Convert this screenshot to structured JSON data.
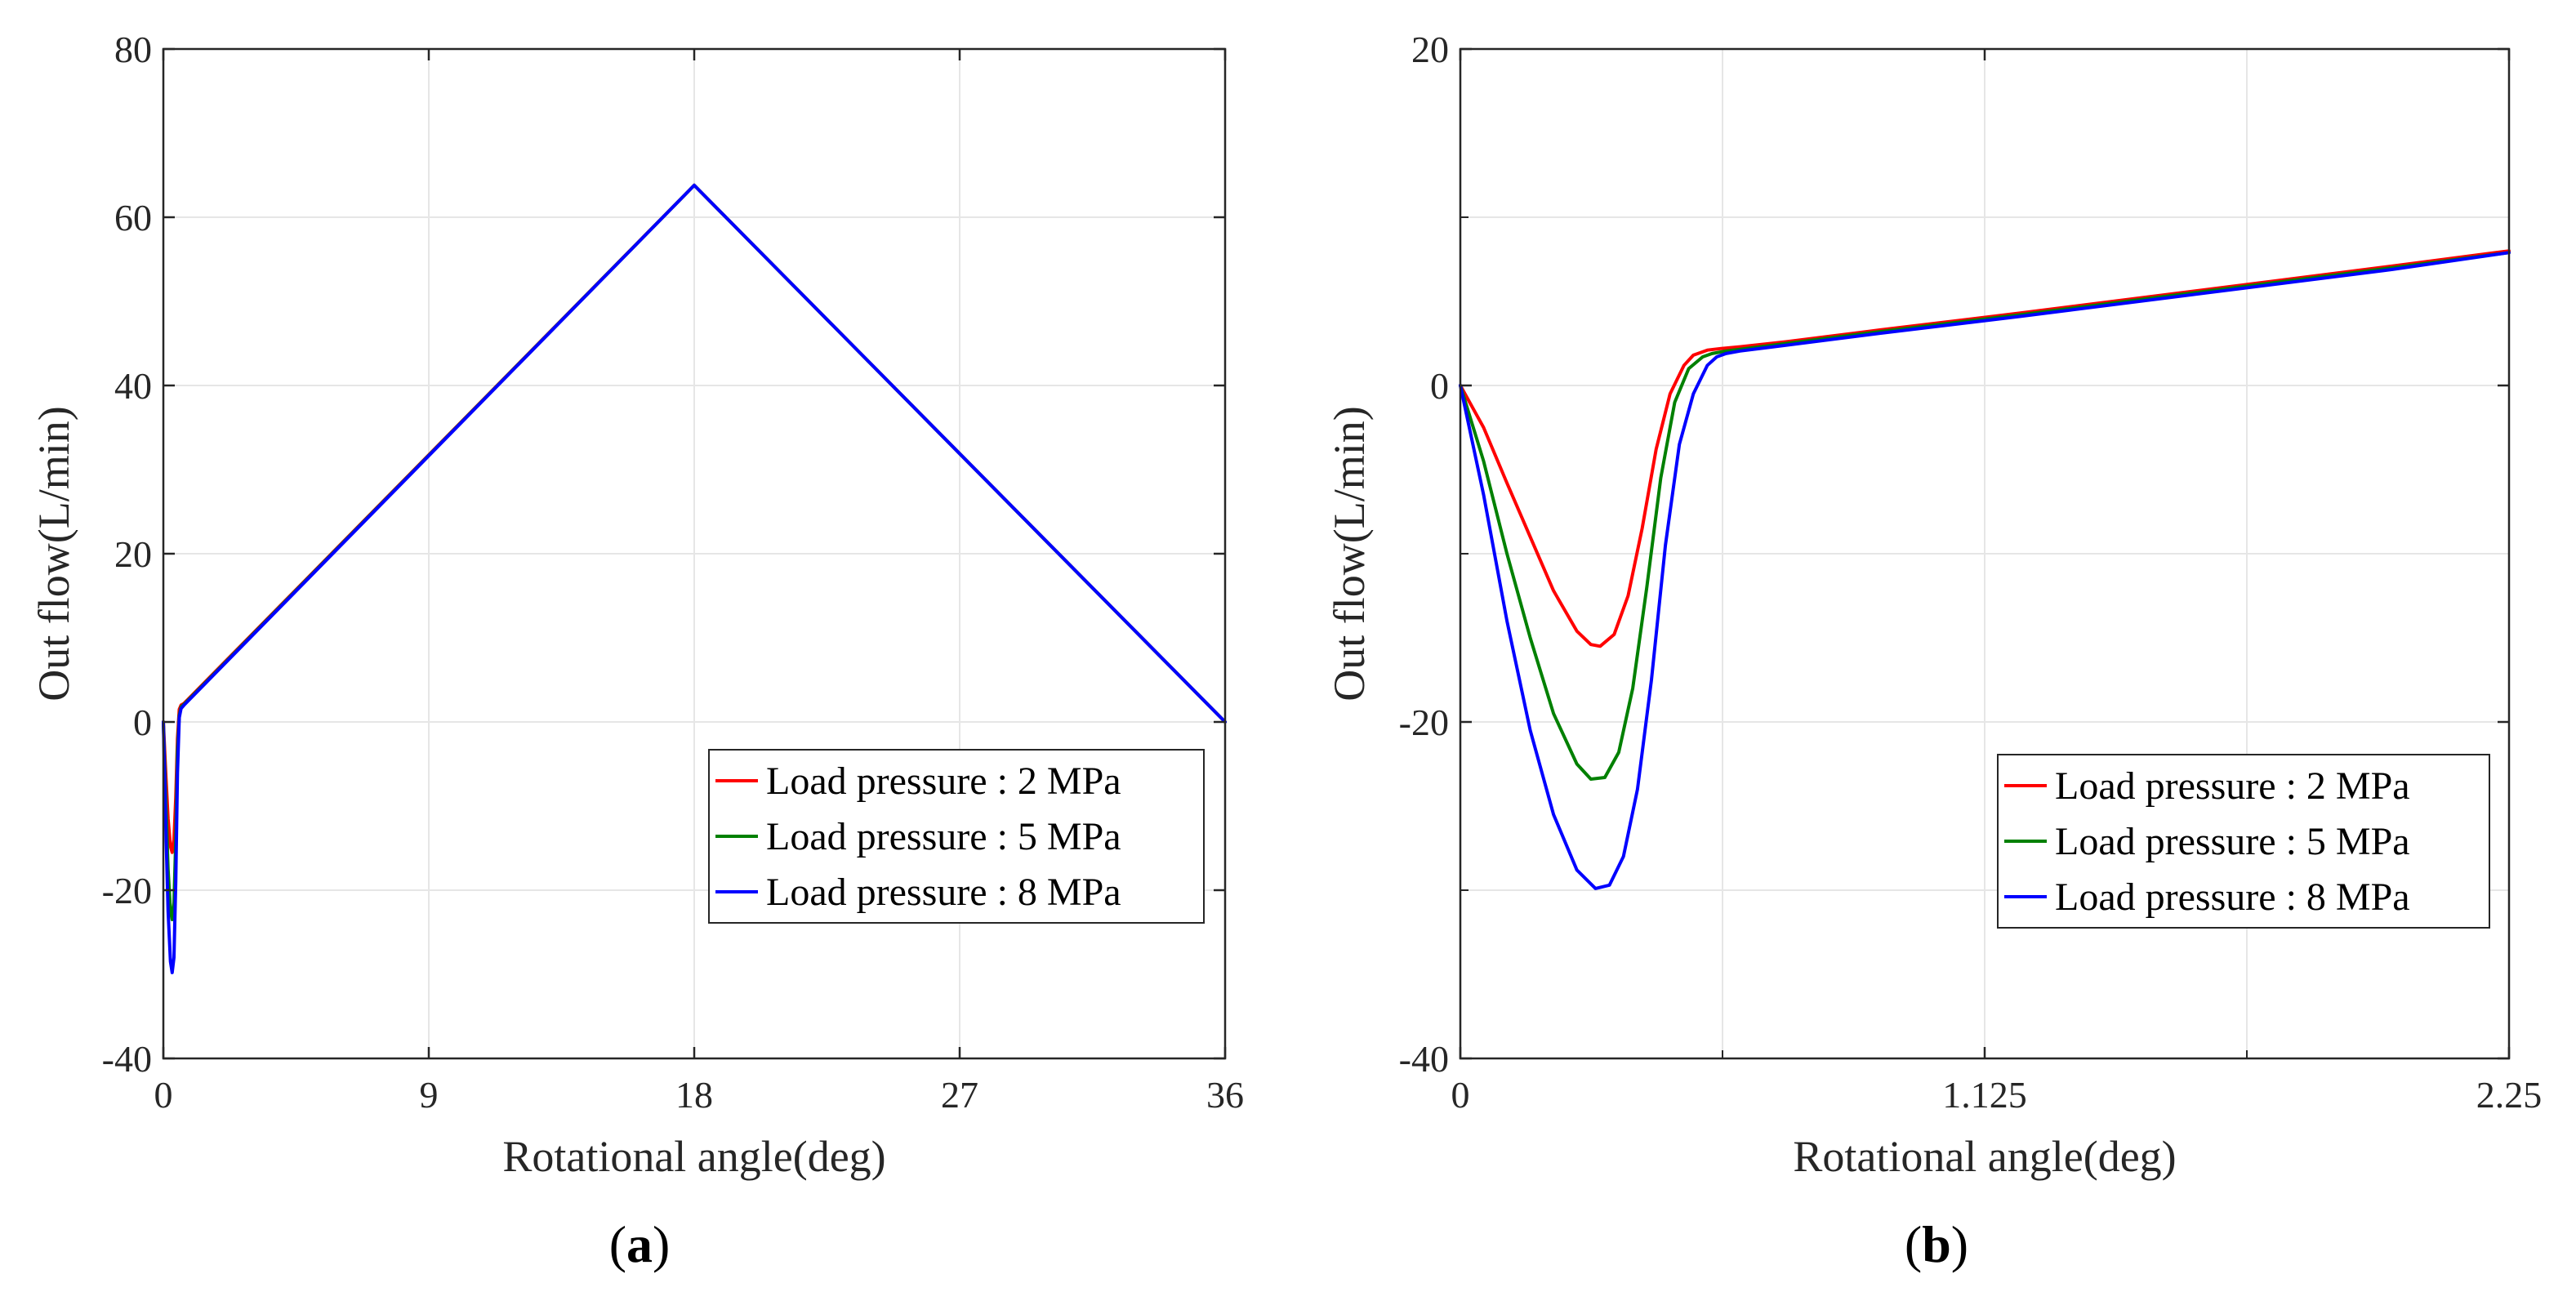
{
  "chart_data": [
    {
      "type": "line",
      "panel_label": "(a)",
      "panel_letter": "a",
      "xlabel": "Rotational angle(deg)",
      "ylabel": "Out flow(L/min)",
      "xlim": [
        0,
        36
      ],
      "ylim": [
        -40,
        80
      ],
      "xticks": [
        0,
        9,
        18,
        27,
        36
      ],
      "xtick_labels": [
        "0",
        "9",
        "18",
        "27",
        "36"
      ],
      "yticks": [
        -40,
        -20,
        0,
        20,
        40,
        60,
        80
      ],
      "ytick_labels": [
        "-40",
        "-20",
        "0",
        "20",
        "40",
        "60",
        "80"
      ],
      "grid": true,
      "legend_position": "lower-right",
      "series": [
        {
          "name": "Load pressure : 2 MPa",
          "color": "#ff0000",
          "x": [
            0,
            0.08,
            0.16,
            0.24,
            0.3,
            0.36,
            0.42,
            0.48,
            0.54,
            0.6,
            0.7,
            18,
            36
          ],
          "y": [
            0,
            -6,
            -11.5,
            -14.8,
            -15.5,
            -14,
            -9,
            -2,
            1.5,
            2.0,
            2.2,
            63.8,
            0
          ]
        },
        {
          "name": "Load pressure : 5 MPa",
          "color": "#008000",
          "x": [
            0,
            0.08,
            0.16,
            0.24,
            0.3,
            0.36,
            0.42,
            0.48,
            0.54,
            0.6,
            0.7,
            18,
            36
          ],
          "y": [
            0,
            -9,
            -17.5,
            -22.5,
            -23.5,
            -21.5,
            -14,
            -3.5,
            0.8,
            1.8,
            2.1,
            63.8,
            0
          ]
        },
        {
          "name": "Load pressure : 8 MPa",
          "color": "#0000ff",
          "x": [
            0,
            0.08,
            0.16,
            0.24,
            0.3,
            0.36,
            0.42,
            0.48,
            0.54,
            0.6,
            0.7,
            18,
            36
          ],
          "y": [
            0,
            -12,
            -22.5,
            -28.5,
            -29.8,
            -28,
            -19,
            -6,
            0.5,
            1.6,
            2.0,
            63.8,
            0
          ]
        }
      ]
    },
    {
      "type": "line",
      "panel_label": "(b)",
      "panel_letter": "b",
      "xlabel": "Rotational angle(deg)",
      "ylabel": "Out flow(L/min)",
      "xlim": [
        0,
        2.25
      ],
      "ylim": [
        -40,
        20
      ],
      "xticks": [
        0,
        1.125,
        2.25
      ],
      "xtick_labels": [
        "0",
        "1.125",
        "2.25"
      ],
      "yticks": [
        -40,
        -20,
        0,
        20
      ],
      "ytick_labels": [
        "-40",
        "-20",
        "0",
        "20"
      ],
      "minor_xticks": [
        0.5625,
        1.6875
      ],
      "minor_yticks": [
        -30,
        -10,
        10
      ],
      "grid": true,
      "legend_position": "lower-right",
      "series": [
        {
          "name": "Load pressure : 2 MPa",
          "color": "#ff0000",
          "x": [
            0,
            0.05,
            0.1,
            0.15,
            0.2,
            0.25,
            0.28,
            0.3,
            0.33,
            0.36,
            0.39,
            0.42,
            0.45,
            0.48,
            0.5,
            0.53,
            0.56,
            0.6,
            0.7,
            0.9,
            1.2,
            1.6,
            2.0,
            2.25
          ],
          "y": [
            0,
            -2.5,
            -5.8,
            -9.0,
            -12.2,
            -14.6,
            -15.4,
            -15.5,
            -14.8,
            -12.5,
            -8.5,
            -3.8,
            -0.5,
            1.2,
            1.8,
            2.1,
            2.2,
            2.3,
            2.6,
            3.3,
            4.3,
            5.7,
            7.1,
            8.0
          ]
        },
        {
          "name": "Load pressure : 5 MPa",
          "color": "#008000",
          "x": [
            0,
            0.05,
            0.1,
            0.15,
            0.2,
            0.25,
            0.28,
            0.31,
            0.34,
            0.37,
            0.4,
            0.43,
            0.46,
            0.49,
            0.52,
            0.54,
            0.57,
            0.6,
            0.7,
            0.9,
            1.2,
            1.6,
            2.0,
            2.25
          ],
          "y": [
            0,
            -4.5,
            -10.0,
            -15.0,
            -19.5,
            -22.5,
            -23.4,
            -23.3,
            -21.8,
            -18.0,
            -12.0,
            -5.5,
            -1.0,
            1.0,
            1.7,
            1.9,
            2.05,
            2.15,
            2.5,
            3.2,
            4.2,
            5.6,
            7.0,
            7.9
          ]
        },
        {
          "name": "Load pressure : 8 MPa",
          "color": "#0000ff",
          "x": [
            0,
            0.05,
            0.1,
            0.15,
            0.2,
            0.25,
            0.29,
            0.32,
            0.35,
            0.38,
            0.41,
            0.44,
            0.47,
            0.5,
            0.53,
            0.55,
            0.57,
            0.6,
            0.7,
            0.9,
            1.2,
            1.6,
            2.0,
            2.25
          ],
          "y": [
            0,
            -6.5,
            -14.0,
            -20.5,
            -25.5,
            -28.8,
            -29.9,
            -29.7,
            -28.0,
            -24.0,
            -17.5,
            -9.5,
            -3.5,
            -0.5,
            1.2,
            1.7,
            1.9,
            2.05,
            2.4,
            3.1,
            4.1,
            5.5,
            6.9,
            7.9
          ]
        }
      ]
    }
  ]
}
